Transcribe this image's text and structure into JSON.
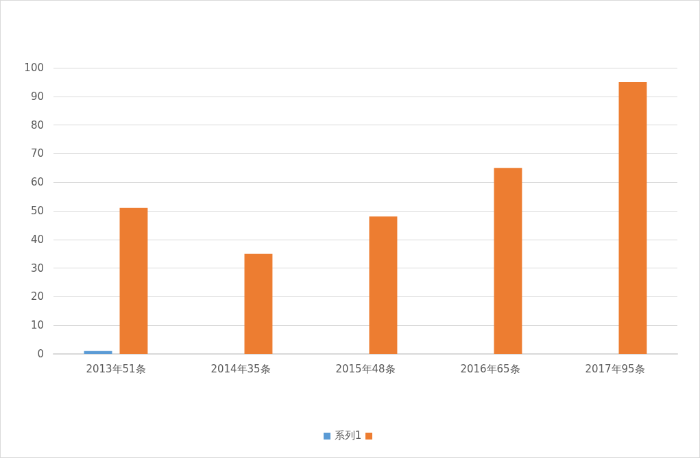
{
  "chart_data": {
    "type": "bar",
    "categories": [
      "2013年51条",
      "2014年35条",
      "2015年48条",
      "2016年65条",
      "2017年95条"
    ],
    "series": [
      {
        "name": "系列1",
        "color": "#5b9bd5",
        "values": [
          1,
          null,
          null,
          null,
          null
        ]
      },
      {
        "color": "#ed7d31",
        "values": [
          51,
          35,
          48,
          65,
          95
        ]
      }
    ],
    "ylim": [
      0,
      100
    ],
    "yticks": [
      0,
      10,
      20,
      30,
      40,
      50,
      60,
      70,
      80,
      90,
      100
    ],
    "grid": "y",
    "legend": "bottom"
  }
}
